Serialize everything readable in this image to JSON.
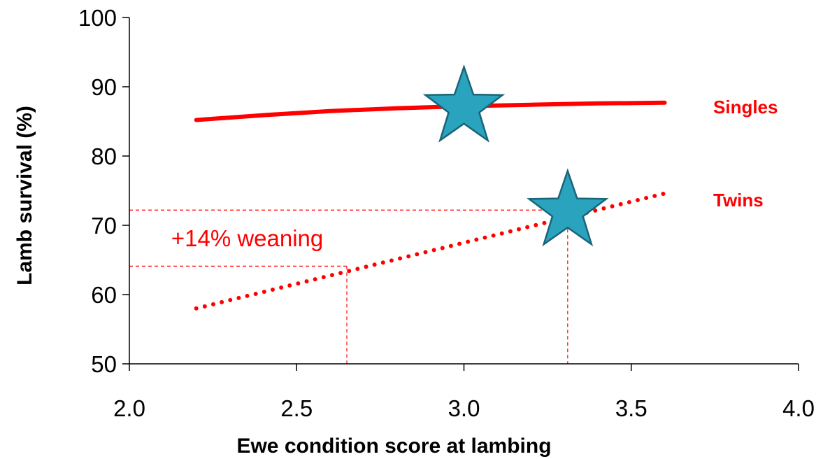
{
  "colors": {
    "series": "#ff0000",
    "star_fill": "#2aa3bf",
    "star_stroke": "#1b6478",
    "axis": "#000000"
  },
  "chart_data": {
    "type": "line",
    "xlabel": "Ewe condition score at lambing",
    "ylabel": "Lamb survival (%)",
    "xlim": [
      2.0,
      4.0
    ],
    "ylim": [
      50,
      100
    ],
    "x_ticks": [
      2.0,
      2.5,
      3.0,
      3.5,
      4.0
    ],
    "x_tick_labels": [
      "2.0",
      "2.5",
      "3.0",
      "3.5",
      "4.0"
    ],
    "y_ticks": [
      50,
      60,
      70,
      80,
      90,
      100
    ],
    "y_tick_labels": [
      "50",
      "60",
      "70",
      "80",
      "90",
      "100"
    ],
    "grid": false,
    "series": [
      {
        "name": "Singles",
        "style": "solid",
        "x": [
          2.2,
          2.4,
          2.6,
          2.8,
          3.0,
          3.2,
          3.4,
          3.6
        ],
        "y": [
          85.2,
          85.9,
          86.5,
          86.9,
          87.2,
          87.4,
          87.6,
          87.7
        ]
      },
      {
        "name": "Twins",
        "style": "dotted",
        "x": [
          2.2,
          3.6
        ],
        "y": [
          58.0,
          74.6
        ]
      }
    ],
    "markers": [
      {
        "shape": "star",
        "x": 3.0,
        "y": 87.0
      },
      {
        "shape": "star",
        "x": 3.31,
        "y": 72.0
      }
    ],
    "reference_lines": [
      {
        "x": 2.65,
        "y": 64.1
      },
      {
        "x": 3.31,
        "y": 72.2
      }
    ],
    "annotations": [
      {
        "text": "+14% weaning",
        "x": 2.1,
        "y": 68.2
      }
    ]
  }
}
